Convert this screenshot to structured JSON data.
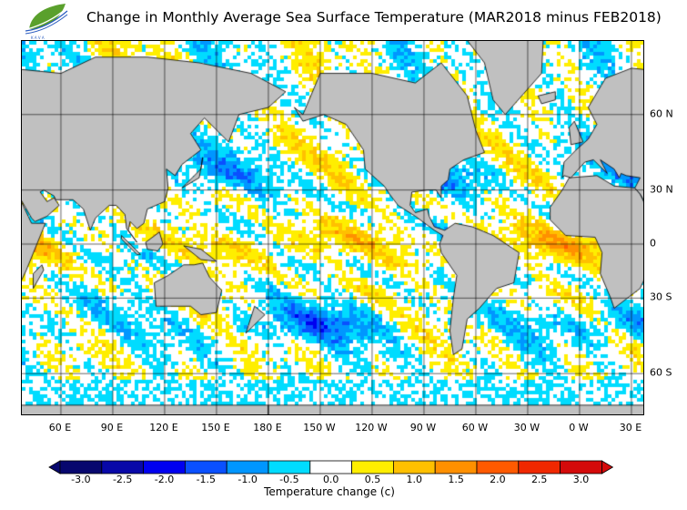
{
  "title": "Change in Monthly Average Sea Surface Temperature (MAR2018 minus FEB2018)",
  "logo": {
    "icon": "green-leaf-logo-icon",
    "text": "KAVA"
  },
  "map": {
    "projection": "mercator",
    "longitude_labels": [
      "60 E",
      "90 E",
      "120 E",
      "150 E",
      "180 E",
      "150 W",
      "120 W",
      "90 W",
      "60 W",
      "30 W",
      "0 W",
      "30 E"
    ],
    "latitude_labels": [
      "60 N",
      "30 N",
      "0",
      "30 S",
      "60 S"
    ],
    "land_color": "#c0c0c0",
    "ice_color": "#e0e0e0"
  },
  "colorbar": {
    "title": "Temperature change  (c)",
    "tick_labels": [
      "-3.0",
      "-2.5",
      "-2.0",
      "-1.5",
      "-1.0",
      "-0.5",
      "0.0",
      "0.5",
      "1.0",
      "1.5",
      "2.0",
      "2.5",
      "3.0"
    ],
    "colors": [
      "#07076e",
      "#0808a8",
      "#0000f0",
      "#0a50ff",
      "#0096ff",
      "#00dcff",
      "#ffffff",
      "#ffee00",
      "#ffc000",
      "#ff9000",
      "#ff5a00",
      "#f02800",
      "#d40a0a"
    ],
    "extend": "both"
  }
}
